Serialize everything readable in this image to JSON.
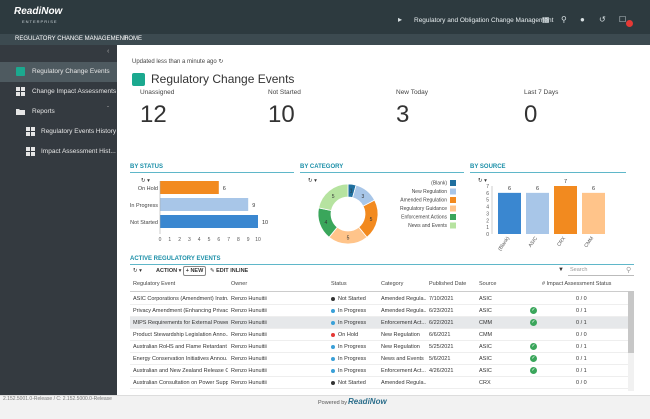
{
  "brand": {
    "name": "ReadiNow",
    "tagline": "ENTERPRISE"
  },
  "app_title": "Regulatory and Obligation Change Management",
  "top_icons": [
    "megaphone-icon",
    "grid-icon",
    "search-icon",
    "user-icon",
    "history-icon",
    "notifications-icon"
  ],
  "nav": {
    "app_tab": "REGULATORY CHANGE MANAGEMENT",
    "home_tab": "HOME"
  },
  "sidebar": {
    "items": [
      {
        "label": "Regulatory Change Events",
        "icon": "dashboard-icon"
      },
      {
        "label": "Change Impact Assessments",
        "icon": "dashboard-icon"
      },
      {
        "label": "Reports",
        "icon": "folder-icon"
      },
      {
        "label": "Regulatory Events History",
        "icon": "report-icon"
      },
      {
        "label": "Impact Assessment Hist...",
        "icon": "report-icon"
      }
    ]
  },
  "header": {
    "updated": "Updated less than a minute ago",
    "title": "Regulatory Change Events"
  },
  "stats": [
    {
      "label": "Unassigned",
      "value": "12"
    },
    {
      "label": "Not Started",
      "value": "10"
    },
    {
      "label": "New Today",
      "value": "3"
    },
    {
      "label": "Last 7 Days",
      "value": "0"
    }
  ],
  "sections": {
    "by_status": "BY STATUS",
    "by_category": "BY CATEGORY",
    "by_source": "BY SOURCE",
    "active_events": "ACTIVE REGULATORY EVENTS"
  },
  "chart_data": [
    {
      "type": "bar",
      "orientation": "horizontal",
      "categories": [
        "On Hold",
        "In Progress",
        "Not Started"
      ],
      "values": [
        6,
        9,
        10
      ],
      "colors": [
        "#f28a1f",
        "#a8c6e8",
        "#3a87d0"
      ],
      "xlim": [
        0,
        10
      ],
      "xticks": [
        "0",
        "1",
        "2",
        "3",
        "4",
        "5",
        "6",
        "7",
        "8",
        "9",
        "10"
      ]
    },
    {
      "type": "pie",
      "categories": [
        "(Blank)",
        "New Regulation",
        "Amended Regulation",
        "Regulatory Guidance",
        "Enforcement Actions",
        "News and Events"
      ],
      "values": [
        1,
        3,
        5,
        5,
        4,
        5
      ],
      "colors": [
        "#1f6f9f",
        "#a8c6e8",
        "#f28a1f",
        "#ffc48a",
        "#3aa65b",
        "#b6e3a0"
      ],
      "legend_placement": "right"
    },
    {
      "type": "bar",
      "categories": [
        "(Blank)",
        "ASIC",
        "CRX",
        "CMM"
      ],
      "values": [
        6,
        6,
        7,
        6
      ],
      "colors": [
        "#3a87d0",
        "#a8c6e8",
        "#f28a1f",
        "#ffc48a"
      ],
      "ylim": [
        0,
        7
      ],
      "yticks": [
        "0",
        "1",
        "2",
        "3",
        "4",
        "5",
        "6",
        "7"
      ]
    }
  ],
  "toolbar": {
    "action": "ACTION",
    "new": "+ NEW",
    "edit_inline": "EDIT INLINE",
    "search_placeholder": "Search"
  },
  "grid": {
    "columns": [
      "Regulatory Event",
      "Owner",
      "Status",
      "Category",
      "Published Date",
      "Source",
      "# Impact Assessment Status"
    ],
    "rows": [
      {
        "event": "ASIC Corporations (Amendment) Instru...",
        "owner": "Renzo Hunuitii",
        "status": "Not Started",
        "status_color": "#333333",
        "category": "Amended Regula...",
        "date": "7/10/2021",
        "source": "ASIC",
        "ia": "0 / 0"
      },
      {
        "event": "Privacy Amendment (Enhancing Privac...",
        "owner": "Renzo Hunuitii",
        "status": "In Progress",
        "status_color": "#3aa0d8",
        "category": "Amended Regula...",
        "date": "6/23/2021",
        "source": "ASIC",
        "ia": "0 / 1"
      },
      {
        "event": "MIPS Requirements for External Power...",
        "owner": "Renzo Hunuitii",
        "status": "In Progress",
        "status_color": "#3aa0d8",
        "category": "Enforcement Act...",
        "date": "6/22/2021",
        "source": "CMM",
        "ia": "0 / 1"
      },
      {
        "event": "Product Stewardship Legislation Anno...",
        "owner": "Renzo Hunuitii",
        "status": "On Hold",
        "status_color": "#e53935",
        "category": "New Regulation",
        "date": "6/6/2021",
        "source": "CMM",
        "ia": "0 / 0"
      },
      {
        "event": "Australian RoHS and Flame Retardant ...",
        "owner": "Renzo Hunuitii",
        "status": "In Progress",
        "status_color": "#3aa0d8",
        "category": "New Regulation",
        "date": "5/25/2021",
        "source": "ASIC",
        "ia": "0 / 1"
      },
      {
        "event": "Energy Conservation Initiatives Annou...",
        "owner": "Renzo Hunuitii",
        "status": "In Progress",
        "status_color": "#3aa0d8",
        "category": "News and Events",
        "date": "5/6/2021",
        "source": "ASIC",
        "ia": "0 / 1"
      },
      {
        "event": "Australian and New Zealand Release Co...",
        "owner": "Renzo Hunuitii",
        "status": "In Progress",
        "status_color": "#3aa0d8",
        "category": "Enforcement Act...",
        "date": "4/26/2021",
        "source": "ASIC",
        "ia": "0 / 1"
      },
      {
        "event": "Australian Consultation on Power Supp...",
        "owner": "Renzo Hunuitii",
        "status": "Not Started",
        "status_color": "#333333",
        "category": "Amended Regula...",
        "date": "",
        "source": "CRX",
        "ia": "0 / 0"
      }
    ]
  },
  "footer": {
    "version": "2.152.5001.0-Release / C: 2.152.5000.0-Release",
    "powered_by": "Powered by",
    "brand": "ReadiNow"
  }
}
